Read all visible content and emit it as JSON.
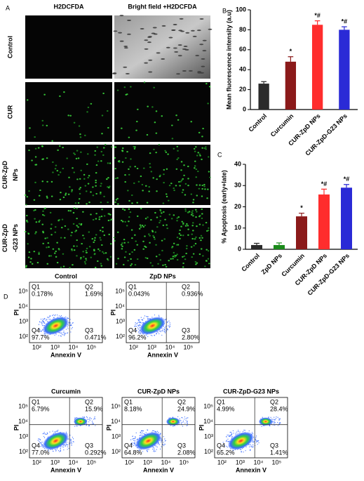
{
  "chart_data": [
    {
      "type": "bar",
      "panel": "B",
      "ylabel": "Mean fluorescence intensity (a.u)",
      "categories": [
        "Control",
        "Curcumin",
        "CUR-ZpD NPs",
        "CUR-ZpD-G23 NPs"
      ],
      "values": [
        26,
        48,
        85,
        80
      ],
      "errors": [
        2,
        5,
        4,
        3
      ],
      "annotations": [
        "*",
        "*#",
        "*#"
      ],
      "annotation_for": [
        1,
        2,
        3
      ],
      "colors": [
        "#2b2b2b",
        "#8b1a1a",
        "#ff2d2d",
        "#2a2ad6"
      ],
      "ylim": [
        0,
        100
      ],
      "yticks": [
        0,
        20,
        40,
        60,
        80,
        100
      ]
    },
    {
      "type": "bar",
      "panel": "C",
      "ylabel": "% Apoptosis (early+late)",
      "categories": [
        "Control",
        "ZpD NPs",
        "Curcumin",
        "CUR-ZpD NPs",
        "CUR-ZpD-G23 NPs"
      ],
      "values": [
        2,
        2,
        15.5,
        25.8,
        29
      ],
      "errors": [
        0.8,
        1,
        1.5,
        2.5,
        1.5
      ],
      "annotations": [
        "*",
        "*#",
        "*#"
      ],
      "annotation_for": [
        2,
        3,
        4
      ],
      "colors": [
        "#2b2b2b",
        "#1a8a1a",
        "#8b1a1a",
        "#ff2d2d",
        "#2a2ad6"
      ],
      "ylim": [
        0,
        40
      ],
      "yticks": [
        0,
        10,
        20,
        30,
        40
      ]
    }
  ],
  "panel_a": {
    "panel": "A",
    "columns": [
      "H2DCFDA",
      "Bright field +H2DCFDA"
    ],
    "rows": [
      [
        "Control"
      ],
      [
        "CUR"
      ],
      [
        "CUR-ZpD",
        "NPs"
      ],
      [
        "CUR-ZpD",
        "-G23 NPs"
      ]
    ]
  },
  "panel_d": {
    "panel": "D",
    "xlabel": "Annexin V",
    "ylabel": "PI",
    "ticks": [
      "10²",
      "10³",
      "10⁴",
      "10⁵"
    ],
    "plots": [
      {
        "title": "Control",
        "quadrants": [
          [
            "Q1",
            "0.178%"
          ],
          [
            "Q2",
            "1.69%"
          ],
          [
            "Q3",
            "0.471%"
          ],
          [
            "Q4",
            "97.7%"
          ]
        ]
      },
      {
        "title": "ZpD NPs",
        "quadrants": [
          [
            "Q1",
            "0.043%"
          ],
          [
            "Q2",
            "0.936%"
          ],
          [
            "Q3",
            "2.80%"
          ],
          [
            "Q4",
            "96.2%"
          ]
        ]
      },
      {
        "title": "Curcumin",
        "quadrants": [
          [
            "Q1",
            "6.79%"
          ],
          [
            "Q2",
            "15.9%"
          ],
          [
            "Q3",
            "0.292%"
          ],
          [
            "Q4",
            "77.0%"
          ]
        ]
      },
      {
        "title": "CUR-ZpD NPs",
        "quadrants": [
          [
            "Q1",
            "8.18%"
          ],
          [
            "Q2",
            "24.9%"
          ],
          [
            "Q3",
            "2.08%"
          ],
          [
            "Q4",
            "64.8%"
          ]
        ]
      },
      {
        "title": "CUR-ZpD-G23 NPs",
        "quadrants": [
          [
            "Q1",
            "4.99%"
          ],
          [
            "Q2",
            "28.4%"
          ],
          [
            "Q3",
            "1.41%"
          ],
          [
            "Q4",
            "65.2%"
          ]
        ]
      }
    ]
  }
}
